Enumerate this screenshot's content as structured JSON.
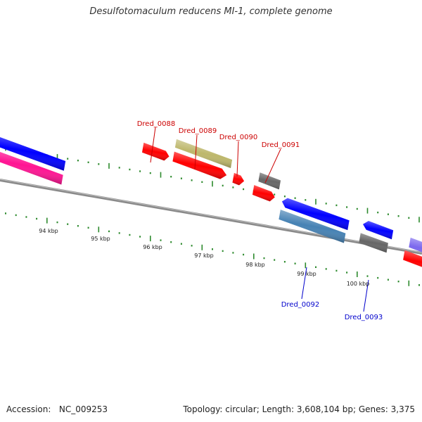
{
  "title": "Desulfotomaculum reducens MI-1, complete genome",
  "footer": {
    "accession_label": "Accession:",
    "accession": "NC_009253",
    "topology_label": "Topology:",
    "topology": "circular",
    "length_label": "Length:",
    "length": "3,608,104 bp",
    "genes_label": "Genes:",
    "genes": "3,375"
  },
  "scale_labels": [
    "94 kbp",
    "95 kbp",
    "96 kbp",
    "97 kbp",
    "98 kbp",
    "99 kbp",
    "100 kbp"
  ],
  "gene_labels_forward": [
    "Dred_0088",
    "Dred_0089",
    "Dred_0090",
    "Dred_0091"
  ],
  "gene_labels_reverse": [
    "Dred_0092",
    "Dred_0093"
  ],
  "colors": {
    "forward_label": "#cc0000",
    "reverse_label": "#0000cc",
    "backbone": "#888888",
    "tick": "#2d8a2d",
    "red_gene": "#ff0000",
    "blue_gene": "#0000ff",
    "olive_gene": "#bdb76b",
    "gray_gene": "#666666",
    "steel_gene": "#4682b4",
    "pink_gene": "#ff1493",
    "purple_gene": "#7b68ee"
  }
}
